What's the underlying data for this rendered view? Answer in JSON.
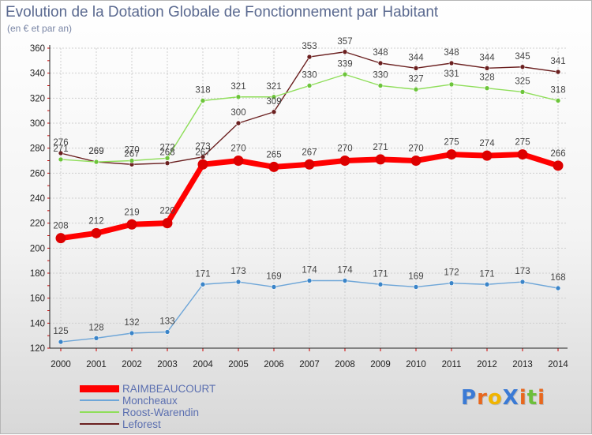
{
  "header": {
    "title": "Evolution de la Dotation Globale de Fonctionnement par Habitant",
    "subtitle": "(en € et par an)"
  },
  "logo": {
    "text": "ProXiti",
    "letters": [
      "P",
      "r",
      "o",
      "X",
      "i",
      "t",
      "i"
    ],
    "colors": [
      "#3a7ad5",
      "#e8671d",
      "#f0b400",
      "#3a7ad5",
      "#e8671d",
      "#6cbf3a",
      "#e8671d"
    ]
  },
  "chart_data": {
    "type": "line",
    "title": "Evolution de la Dotation Globale de Fonctionnement par Habitant",
    "ylabel": "(en € et par an)",
    "xlabel": "",
    "ylim": [
      120,
      360
    ],
    "ytick_step": 20,
    "grid": true,
    "legend_position": "bottom-left",
    "categories": [
      "2000",
      "2001",
      "2002",
      "2003",
      "2004",
      "2005",
      "2006",
      "2007",
      "2008",
      "2009",
      "2010",
      "2011",
      "2012",
      "2013",
      "2014"
    ],
    "series": [
      {
        "name": "Leforest",
        "color": "#6b2020",
        "marker": "#6b2020",
        "values": [
          276,
          269,
          267,
          268,
          273,
          300,
          309,
          353,
          357,
          348,
          344,
          348,
          344,
          345,
          341
        ]
      },
      {
        "name": "Roost-Warendin",
        "color": "#8fde5a",
        "marker": "#6cc43a",
        "values": [
          271,
          269,
          270,
          272,
          318,
          321,
          321,
          330,
          339,
          330,
          327,
          331,
          328,
          325,
          318
        ]
      },
      {
        "name": "Moncheaux",
        "color": "#6ea6d8",
        "marker": "#3a84c8",
        "values": [
          125,
          128,
          132,
          133,
          171,
          173,
          169,
          174,
          174,
          171,
          169,
          172,
          171,
          173,
          168
        ]
      },
      {
        "name": "RAIMBEAUCOURT",
        "color": "#ff0000",
        "marker": "#dd0000",
        "values": [
          208,
          212,
          219,
          220,
          267,
          270,
          265,
          267,
          270,
          271,
          270,
          275,
          274,
          275,
          266
        ]
      }
    ],
    "legend_order": [
      "RAIMBEAUCOURT",
      "Moncheaux",
      "Roost-Warendin",
      "Leforest"
    ]
  }
}
